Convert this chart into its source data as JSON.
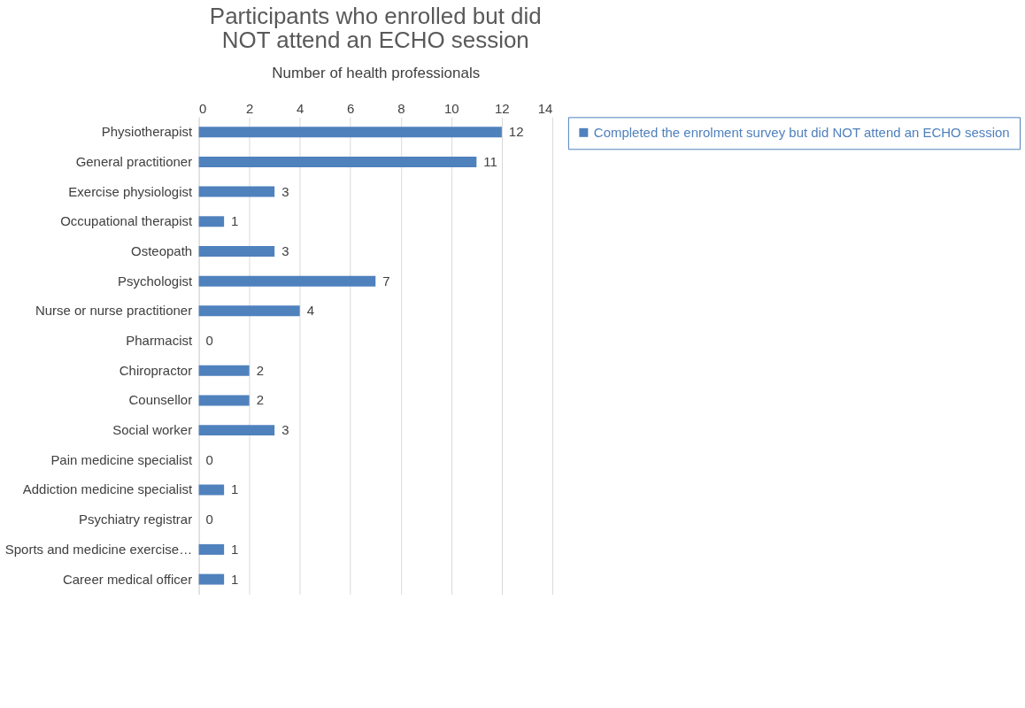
{
  "chart_data": {
    "type": "bar",
    "orientation": "horizontal",
    "title": "Participants who enrolled but did NOT attend an ECHO session",
    "xlabel": "Number of health professionals",
    "categories": [
      "Physiotherapist",
      "General practitioner",
      "Exercise physiologist",
      "Occupational therapist",
      "Osteopath",
      "Psychologist",
      "Nurse or nurse practitioner",
      "Pharmacist",
      "Chiropractor",
      "Counsellor",
      "Social worker",
      "Pain medicine specialist",
      "Addiction medicine specialist",
      "Psychiatry registrar",
      "Sports and medicine exercise…",
      "Career medical officer"
    ],
    "series": [
      {
        "name": "Completed the enrolment survey but did NOT attend an ECHO session",
        "color": "#4f81bd",
        "values": [
          12,
          11,
          3,
          1,
          3,
          7,
          4,
          0,
          2,
          2,
          3,
          0,
          1,
          0,
          1,
          1
        ]
      }
    ],
    "xlim": [
      0,
      14
    ],
    "xticks": [
      0,
      2,
      4,
      6,
      8,
      10,
      12,
      14
    ],
    "grid": "x",
    "legend": "right",
    "data_labels": true
  }
}
